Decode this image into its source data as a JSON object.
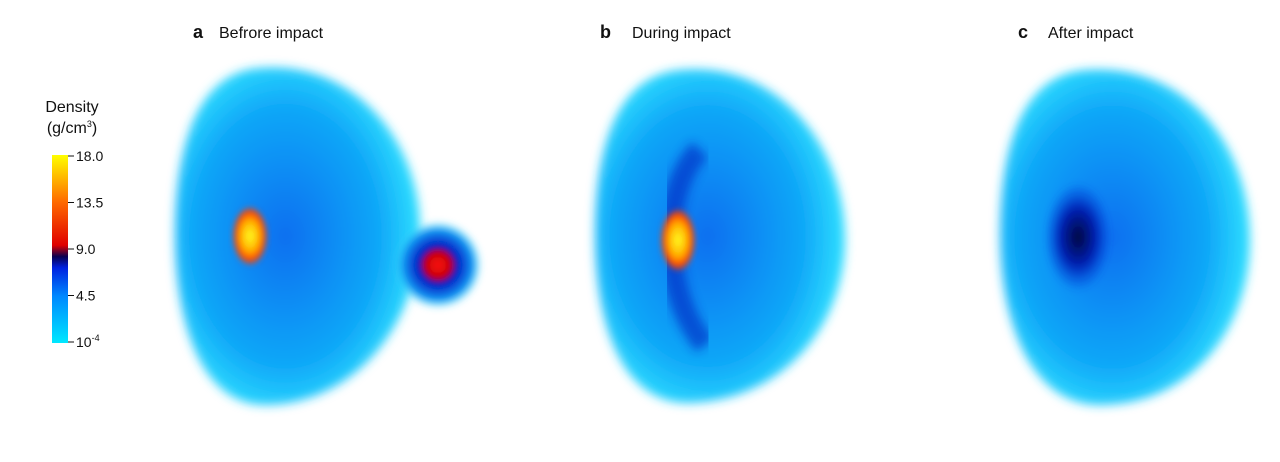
{
  "colorbar": {
    "title": "Density",
    "unit": {
      "before": "(g/cm",
      "sup": "3",
      "after": ")"
    },
    "ticks": [
      "18.0",
      "13.5",
      "9.0",
      "4.5",
      {
        "base": "10",
        "sup": "-4"
      }
    ]
  },
  "panels": [
    {
      "letter": "a",
      "title": "Befrore impact"
    },
    {
      "letter": "b",
      "title": "During impact"
    },
    {
      "letter": "c",
      "title": "After impact"
    }
  ]
}
